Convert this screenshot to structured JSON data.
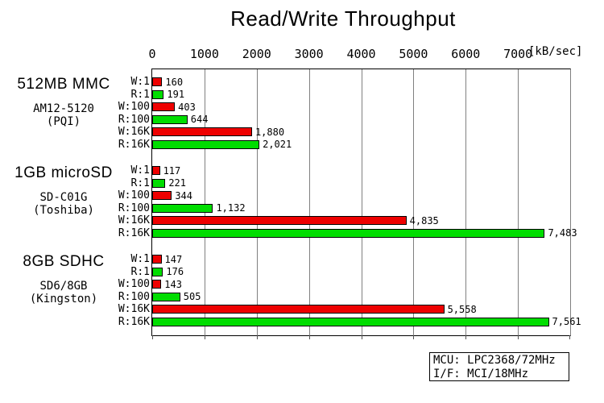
{
  "chart_data": {
    "type": "bar",
    "orientation": "horizontal",
    "title": "Read/Write Throughput",
    "value_unit": "[kB/sec]",
    "xlabel": "[kB/sec]",
    "xlim": [
      0,
      8000
    ],
    "axis_ticks": [
      "0",
      "1000",
      "2000",
      "3000",
      "4000",
      "5000",
      "6000",
      "7000"
    ],
    "grid": true,
    "series_colors": {
      "write": "#ee0000",
      "read": "#00dd00"
    },
    "groups": [
      {
        "name": "512MB MMC",
        "model": "AM12-5120",
        "maker": "(PQI)",
        "bars": [
          {
            "label": "W:1",
            "op": "write",
            "value": 160,
            "display": "160"
          },
          {
            "label": "R:1",
            "op": "read",
            "value": 191,
            "display": "191"
          },
          {
            "label": "W:100",
            "op": "write",
            "value": 403,
            "display": "403"
          },
          {
            "label": "R:100",
            "op": "read",
            "value": 644,
            "display": "644"
          },
          {
            "label": "W:16K",
            "op": "write",
            "value": 1880,
            "display": "1,880"
          },
          {
            "label": "R:16K",
            "op": "read",
            "value": 2021,
            "display": "2,021"
          }
        ]
      },
      {
        "name": "1GB microSD",
        "model": "SD-C01G",
        "maker": "(Toshiba)",
        "bars": [
          {
            "label": "W:1",
            "op": "write",
            "value": 117,
            "display": "117"
          },
          {
            "label": "R:1",
            "op": "read",
            "value": 221,
            "display": "221"
          },
          {
            "label": "W:100",
            "op": "write",
            "value": 344,
            "display": "344"
          },
          {
            "label": "R:100",
            "op": "read",
            "value": 1132,
            "display": "1,132"
          },
          {
            "label": "W:16K",
            "op": "write",
            "value": 4835,
            "display": "4,835"
          },
          {
            "label": "R:16K",
            "op": "read",
            "value": 7483,
            "display": "7,483"
          }
        ]
      },
      {
        "name": "8GB SDHC",
        "model": "SD6/8GB",
        "maker": "(Kingston)",
        "bars": [
          {
            "label": "W:1",
            "op": "write",
            "value": 147,
            "display": "147"
          },
          {
            "label": "R:1",
            "op": "read",
            "value": 176,
            "display": "176"
          },
          {
            "label": "W:100",
            "op": "write",
            "value": 143,
            "display": "143"
          },
          {
            "label": "R:100",
            "op": "read",
            "value": 505,
            "display": "505"
          },
          {
            "label": "W:16K",
            "op": "write",
            "value": 5558,
            "display": "5,558"
          },
          {
            "label": "R:16K",
            "op": "read",
            "value": 7561,
            "display": "7,561"
          }
        ]
      }
    ]
  },
  "colors": {
    "write_bar": "#ee0000",
    "read_bar": "#00dd00",
    "gridline": "#808080",
    "axis": "#000000",
    "background": "#ffffff"
  },
  "info_box": {
    "lines": [
      "MCU: LPC2368/72MHz",
      "I/F: MCI/18MHz"
    ]
  }
}
